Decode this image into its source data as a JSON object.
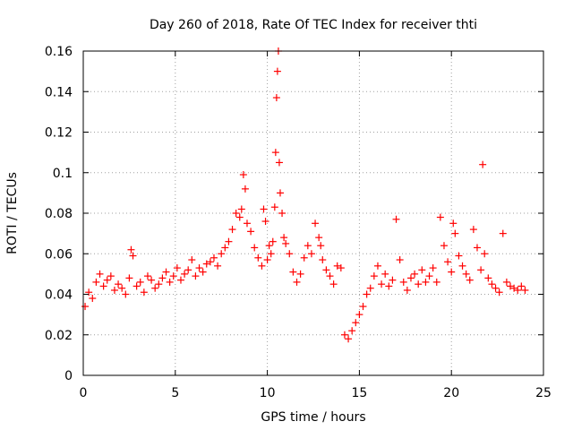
{
  "chart_data": {
    "type": "scatter",
    "title": "Day 260 of 2018, Rate Of TEC Index for receiver thti",
    "xlabel": "GPS time / hours",
    "ylabel": "ROTI / TECUs",
    "xlim": [
      0,
      25
    ],
    "ylim": [
      0,
      0.16
    ],
    "xticks": [
      0,
      5,
      10,
      15,
      20,
      25
    ],
    "yticks": [
      0,
      0.02,
      0.04,
      0.06,
      0.08,
      0.1,
      0.12,
      0.14,
      0.16
    ],
    "xtick_labels": [
      "0",
      "5",
      "10",
      "15",
      "20",
      "25"
    ],
    "ytick_labels": [
      "0",
      "0.02",
      "0.04",
      "0.06",
      "0.08",
      "0.1",
      "0.12",
      "0.14",
      "0.16"
    ],
    "grid": true,
    "marker": "+",
    "marker_color": "#ff0000",
    "series": [
      {
        "name": "ROTI",
        "x": [
          0.1,
          0.3,
          0.5,
          0.7,
          0.9,
          1.1,
          1.3,
          1.5,
          1.7,
          1.9,
          2.1,
          2.3,
          2.5,
          2.6,
          2.7,
          2.9,
          3.1,
          3.3,
          3.5,
          3.7,
          3.9,
          4.1,
          4.3,
          4.5,
          4.7,
          4.9,
          5.1,
          5.3,
          5.5,
          5.7,
          5.9,
          6.1,
          6.3,
          6.5,
          6.7,
          6.9,
          7.1,
          7.3,
          7.5,
          7.7,
          7.9,
          8.1,
          8.3,
          8.5,
          8.6,
          8.7,
          8.8,
          8.9,
          9.1,
          9.3,
          9.5,
          9.7,
          9.8,
          9.9,
          10.0,
          10.1,
          10.2,
          10.3,
          10.4,
          10.45,
          10.5,
          10.55,
          10.6,
          10.65,
          10.7,
          10.8,
          10.9,
          11.0,
          11.2,
          11.4,
          11.6,
          11.8,
          12.0,
          12.2,
          12.4,
          12.6,
          12.8,
          12.9,
          13.0,
          13.2,
          13.4,
          13.6,
          13.8,
          14.0,
          14.2,
          14.4,
          14.6,
          14.8,
          15.0,
          15.2,
          15.4,
          15.6,
          15.8,
          16.0,
          16.2,
          16.4,
          16.6,
          16.8,
          17.0,
          17.2,
          17.4,
          17.6,
          17.8,
          18.0,
          18.2,
          18.4,
          18.6,
          18.8,
          19.0,
          19.2,
          19.4,
          19.6,
          19.8,
          20.0,
          20.1,
          20.2,
          20.4,
          20.6,
          20.8,
          21.0,
          21.2,
          21.4,
          21.6,
          21.7,
          21.8,
          22.0,
          22.2,
          22.4,
          22.6,
          22.8,
          23.0,
          23.2,
          23.4,
          23.6,
          23.8,
          24.0
        ],
        "y": [
          0.034,
          0.041,
          0.038,
          0.046,
          0.05,
          0.044,
          0.047,
          0.049,
          0.042,
          0.045,
          0.043,
          0.04,
          0.048,
          0.062,
          0.059,
          0.044,
          0.046,
          0.041,
          0.049,
          0.047,
          0.043,
          0.045,
          0.048,
          0.051,
          0.046,
          0.049,
          0.053,
          0.047,
          0.05,
          0.052,
          0.057,
          0.049,
          0.053,
          0.051,
          0.055,
          0.056,
          0.058,
          0.054,
          0.06,
          0.063,
          0.066,
          0.072,
          0.08,
          0.078,
          0.082,
          0.099,
          0.092,
          0.075,
          0.071,
          0.063,
          0.058,
          0.054,
          0.082,
          0.076,
          0.057,
          0.064,
          0.06,
          0.066,
          0.083,
          0.11,
          0.137,
          0.15,
          0.16,
          0.105,
          0.09,
          0.08,
          0.068,
          0.065,
          0.06,
          0.051,
          0.046,
          0.05,
          0.058,
          0.064,
          0.06,
          0.075,
          0.068,
          0.064,
          0.057,
          0.052,
          0.049,
          0.045,
          0.054,
          0.053,
          0.02,
          0.018,
          0.022,
          0.026,
          0.03,
          0.034,
          0.04,
          0.043,
          0.049,
          0.054,
          0.045,
          0.05,
          0.044,
          0.047,
          0.077,
          0.057,
          0.046,
          0.042,
          0.048,
          0.05,
          0.045,
          0.052,
          0.046,
          0.049,
          0.053,
          0.046,
          0.078,
          0.064,
          0.056,
          0.051,
          0.075,
          0.07,
          0.059,
          0.054,
          0.05,
          0.047,
          0.072,
          0.063,
          0.052,
          0.104,
          0.06,
          0.048,
          0.045,
          0.043,
          0.041,
          0.07,
          0.046,
          0.044,
          0.043,
          0.042,
          0.044,
          0.042
        ]
      }
    ]
  }
}
